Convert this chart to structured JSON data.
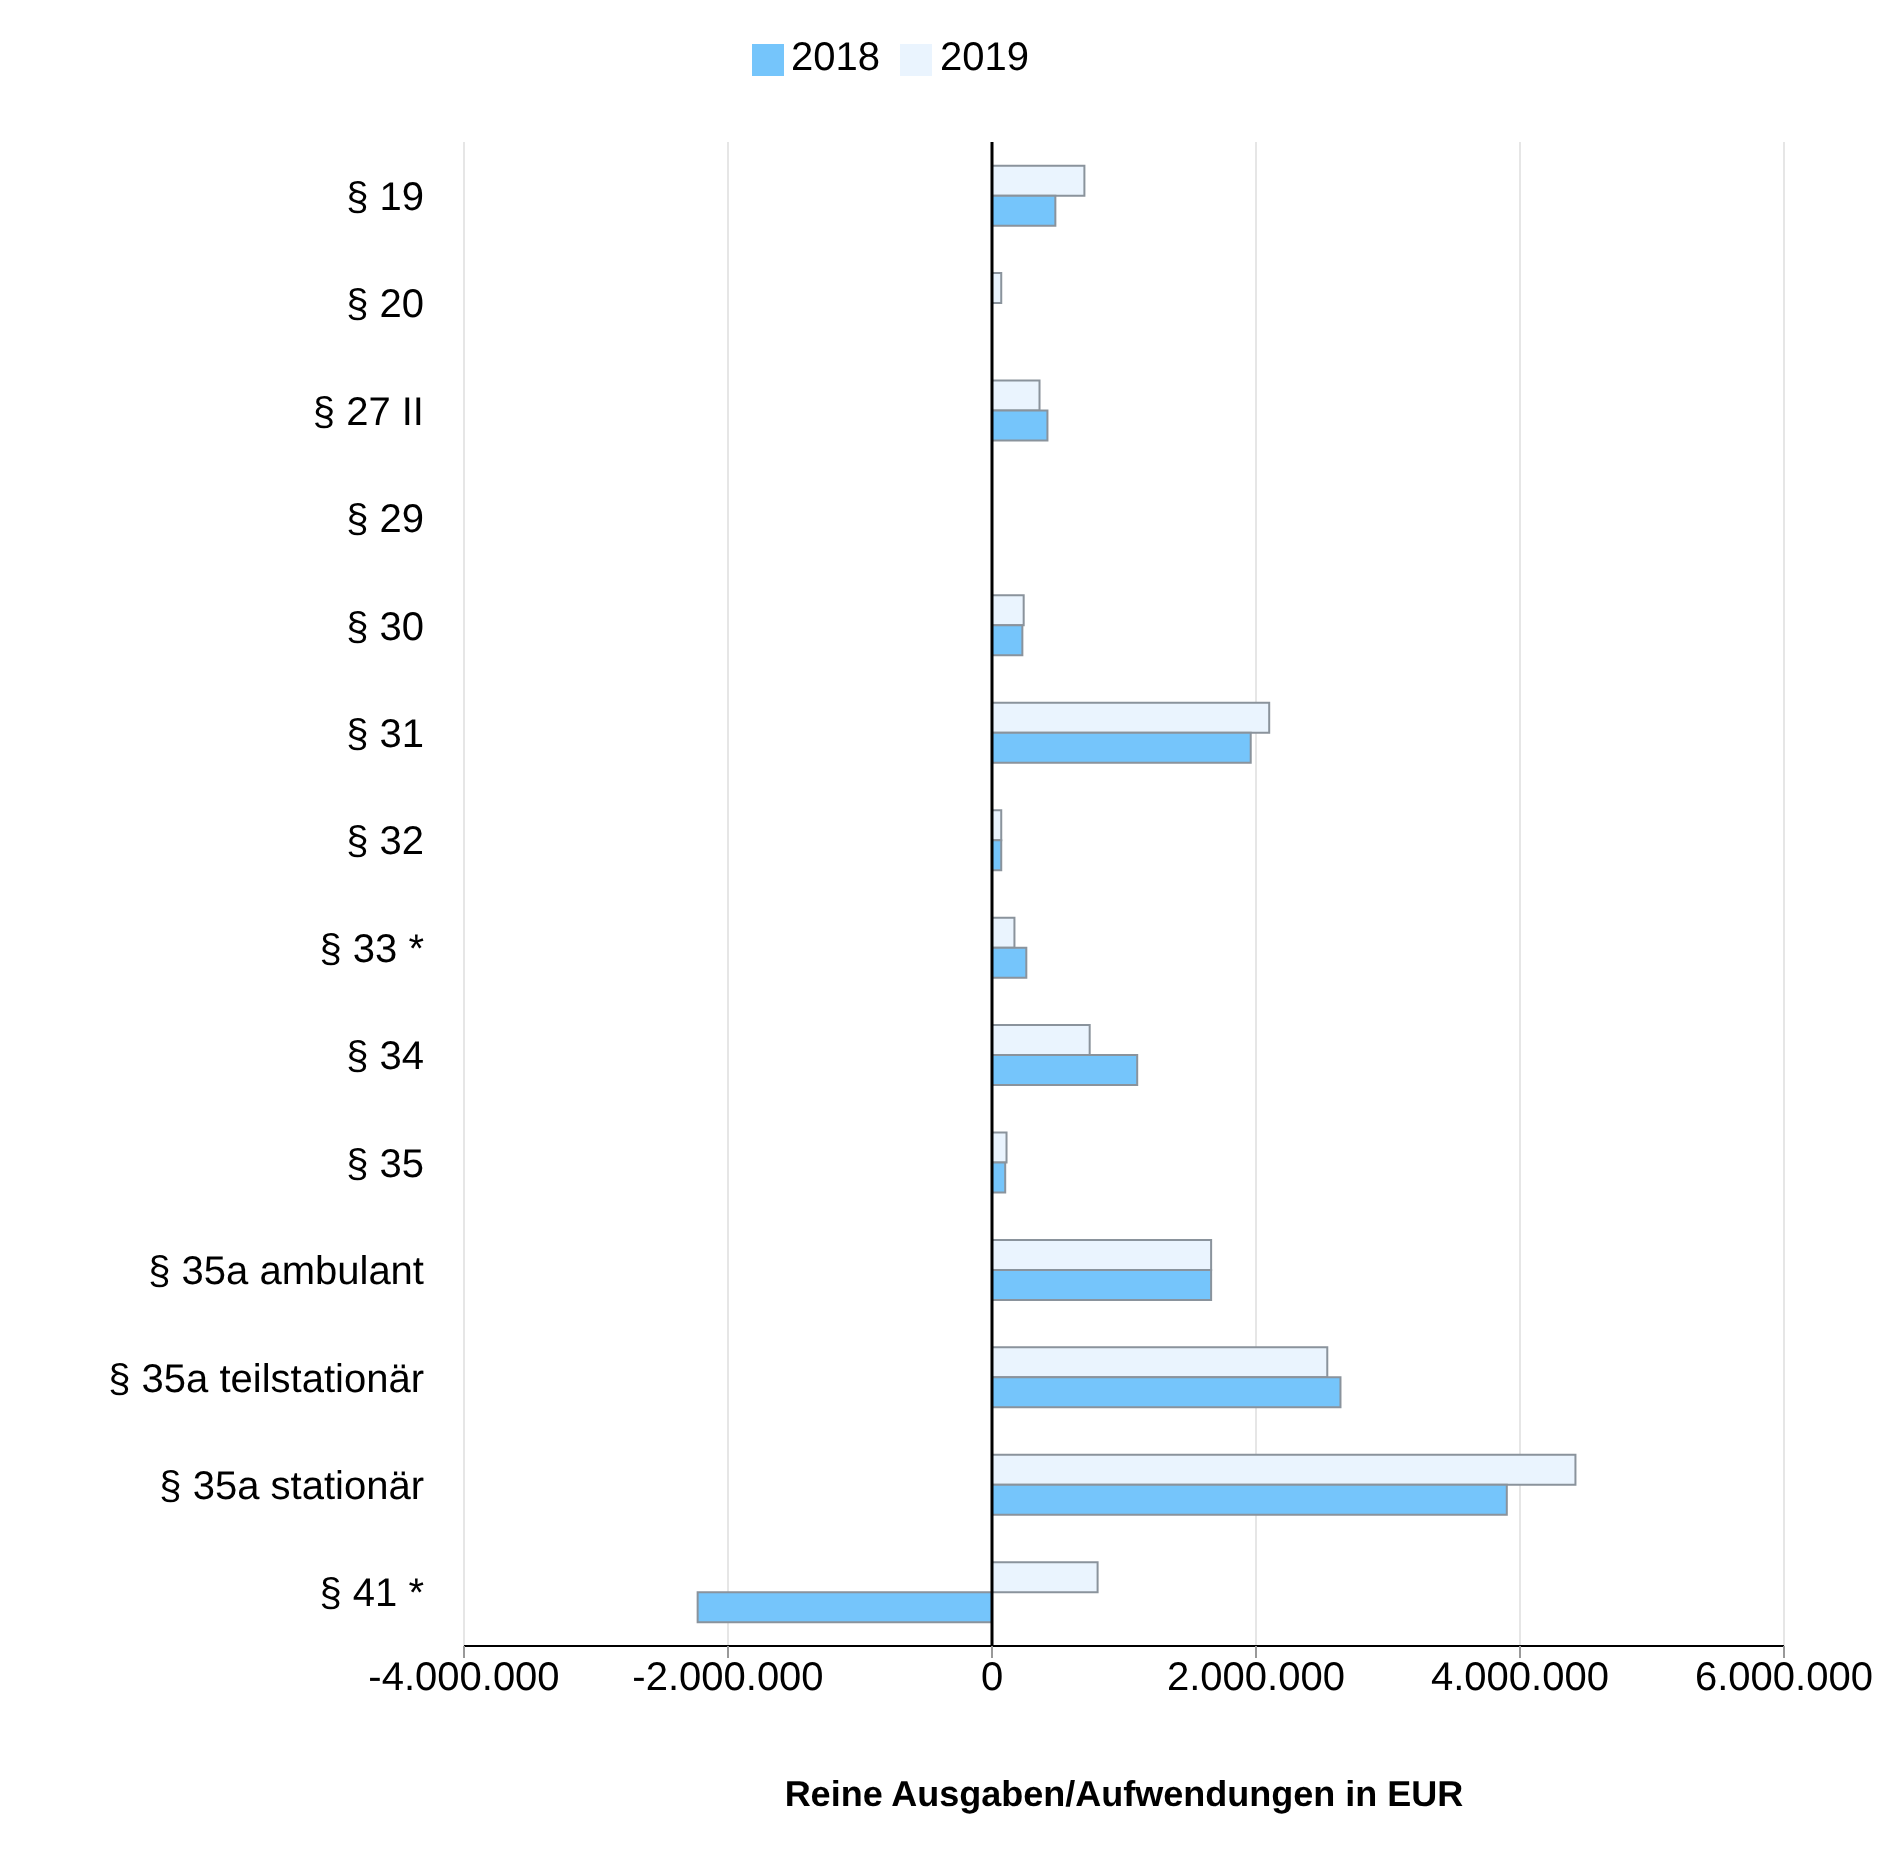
{
  "chart_data": {
    "type": "bar",
    "orientation": "horizontal",
    "xlabel": "Reine Ausgaben/Aufwendungen in EUR",
    "categories": [
      "§ 19",
      "§ 20",
      "§ 27 II",
      "§ 29",
      "§ 30",
      "§ 31",
      "§ 32",
      "§ 33 *",
      "§ 34",
      "§ 35",
      "§ 35a ambulant",
      "§ 35a teilstationär",
      "§ 35a stationär",
      "§ 41 *"
    ],
    "series": [
      {
        "name": "2019",
        "color": "#eaf4fe",
        "values": [
          700000,
          70000,
          360000,
          null,
          240000,
          2100000,
          70000,
          170000,
          740000,
          110000,
          1660000,
          2540000,
          4420000,
          800000
        ]
      },
      {
        "name": "2018",
        "color": "#75c5fb",
        "values": [
          480000,
          null,
          420000,
          null,
          230000,
          1960000,
          70000,
          260000,
          1100000,
          100000,
          1660000,
          2640000,
          3900000,
          -2230000
        ]
      }
    ],
    "xlim": [
      -4000000,
      6000000
    ],
    "xticks": [
      {
        "value": -4000000,
        "label": "-4.000.000"
      },
      {
        "value": -2000000,
        "label": "-2.000.000"
      },
      0,
      {
        "value": 2000000,
        "label": "2.000.000"
      },
      {
        "value": 4000000,
        "label": "4.000.000"
      },
      {
        "value": 6000000,
        "label": "6.000.000"
      }
    ],
    "grid": "x",
    "legend": "top"
  }
}
